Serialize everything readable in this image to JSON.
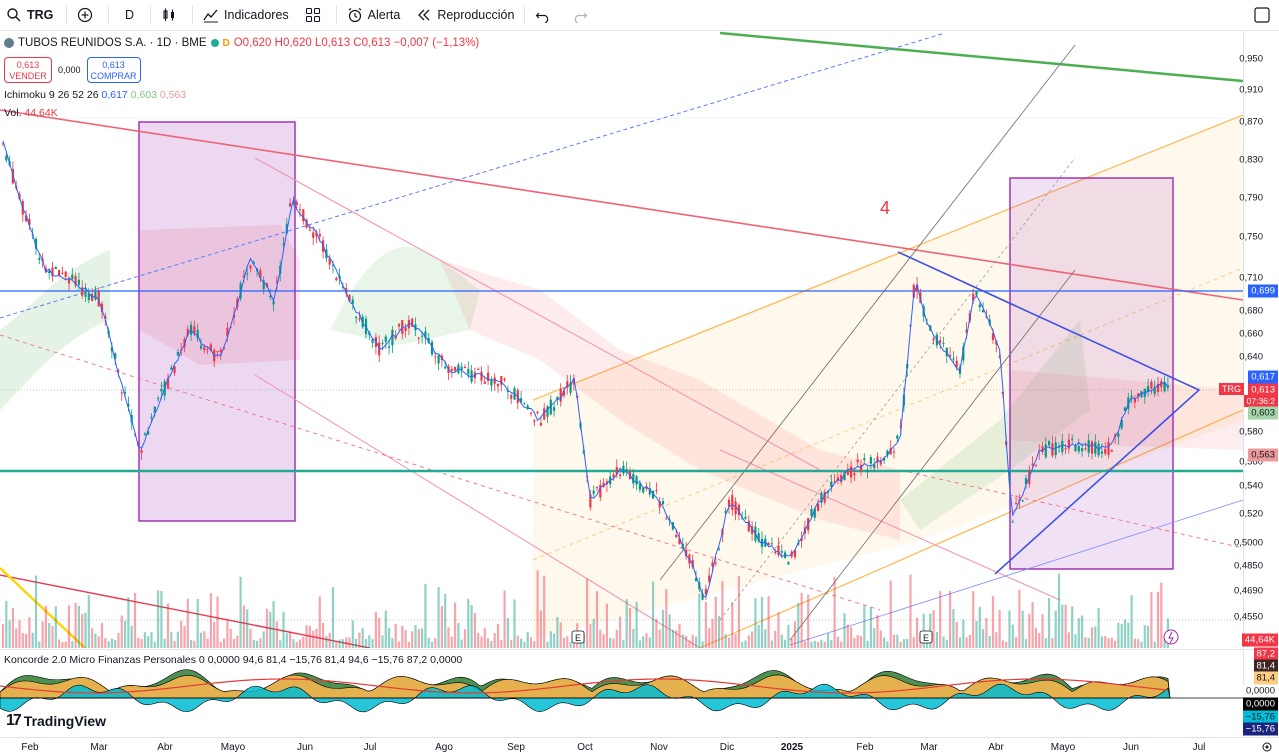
{
  "toolbar": {
    "symbol": "TRG",
    "interval": "D",
    "indicators_label": "Indicadores",
    "alert_label": "Alerta",
    "replay_label": "Reproducción"
  },
  "legend": {
    "title": "TUBOS REUNIDOS S.A. · 1D · BME",
    "badge": "D",
    "ohlc": "O0,620 H0,620 L0,613 C0,613 −0,007 (−1,13%)",
    "sell_price": "0,613",
    "sell_label": "VENDER",
    "spread": "0,000",
    "buy_price": "0,613",
    "buy_label": "COMPRAR",
    "ichimoku_label": "Ichimoku 9 26 52 26",
    "ichimoku_v1": "0,617",
    "ichimoku_v2": "0,603",
    "ichimoku_v3": "0,563",
    "vol_label": "Vol.",
    "vol_value": "44,64K"
  },
  "chart_annotation": "4",
  "price_axis": {
    "labels": [
      "0,950",
      "0,910",
      "0,870",
      "0,830",
      "0,790",
      "0,750",
      "0,710",
      "0,680",
      "0,660",
      "0,640",
      "0,580",
      "0,560",
      "0,540",
      "0,520",
      "0,5000",
      "0,4850",
      "0,4690",
      "0,4550"
    ],
    "tags": {
      "t699": "0,699",
      "t617": "0,617",
      "symbol": "TRG",
      "t613": "0,613",
      "time": "07:36:2",
      "t603": "0,603",
      "t563": "0,563",
      "vol": "44,64K"
    }
  },
  "oscillator": {
    "legend": "Koncorde 2.0 Micro Finanzas Personales 0  0,0000  94,6  81,4  −15,76  81,4  94,6  −15,76  87,2  0,0000",
    "tags": {
      "a": "87,2",
      "b": "81,4",
      "c": "81,4",
      "d": "0,0000",
      "e": "0,0000",
      "f": "−15,76",
      "g": "−15,76"
    }
  },
  "time_axis": [
    "Feb",
    "Mar",
    "Abr",
    "Mayo",
    "Jun",
    "Jul",
    "Ago",
    "Sep",
    "Oct",
    "Nov",
    "Dic",
    "2025",
    "Feb",
    "Mar",
    "Abr",
    "Mayo",
    "Jun",
    "Jul"
  ],
  "branding": "TradingView",
  "colors": {
    "up": "#089981",
    "down": "#f23645",
    "purple_box": "#9c27b0",
    "green_line": "#4caf50",
    "blue_line": "#2962ff",
    "teal_support": "#22ab94"
  }
}
